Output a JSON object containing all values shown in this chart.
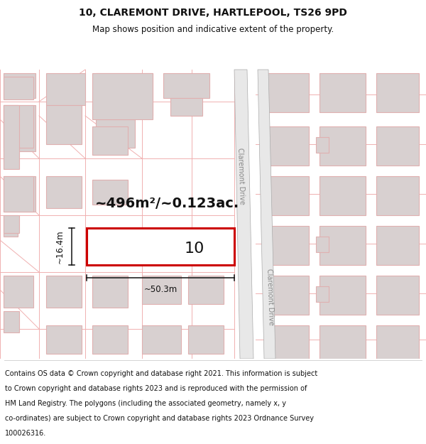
{
  "title_line1": "10, CLAREMONT DRIVE, HARTLEPOOL, TS26 9PD",
  "title_line2": "Map shows position and indicative extent of the property.",
  "background_color": "#ffffff",
  "map_bg": "#f7f2f2",
  "road_stripe_color": "#e0d0d0",
  "road_edge_color": "#c8a8a8",
  "street_line_color": "#f0b0b0",
  "building_face_color": "#d8d0d0",
  "building_edge_color": "#e0b0b0",
  "highlight_color": "#cc0000",
  "dim_line_color": "#111111",
  "area_text": "~496m²/~0.123ac.",
  "number_text": "10",
  "dim_width": "~50.3m",
  "dim_height": "~16.4m",
  "road_label": "Claremont Drive",
  "footer_lines": [
    "Contains OS data © Crown copyright and database right 2021. This information is subject",
    "to Crown copyright and database rights 2023 and is reproduced with the permission of",
    "HM Land Registry. The polygons (including the associated geometry, namely x, y",
    "co-ordinates) are subject to Crown copyright and database rights 2023 Ordnance Survey",
    "100026316."
  ],
  "title_fontsize": 10,
  "subtitle_fontsize": 8.5,
  "area_fontsize": 14,
  "number_fontsize": 16,
  "dim_fontsize": 8.5,
  "road_label_fontsize": 7,
  "footer_fontsize": 7
}
